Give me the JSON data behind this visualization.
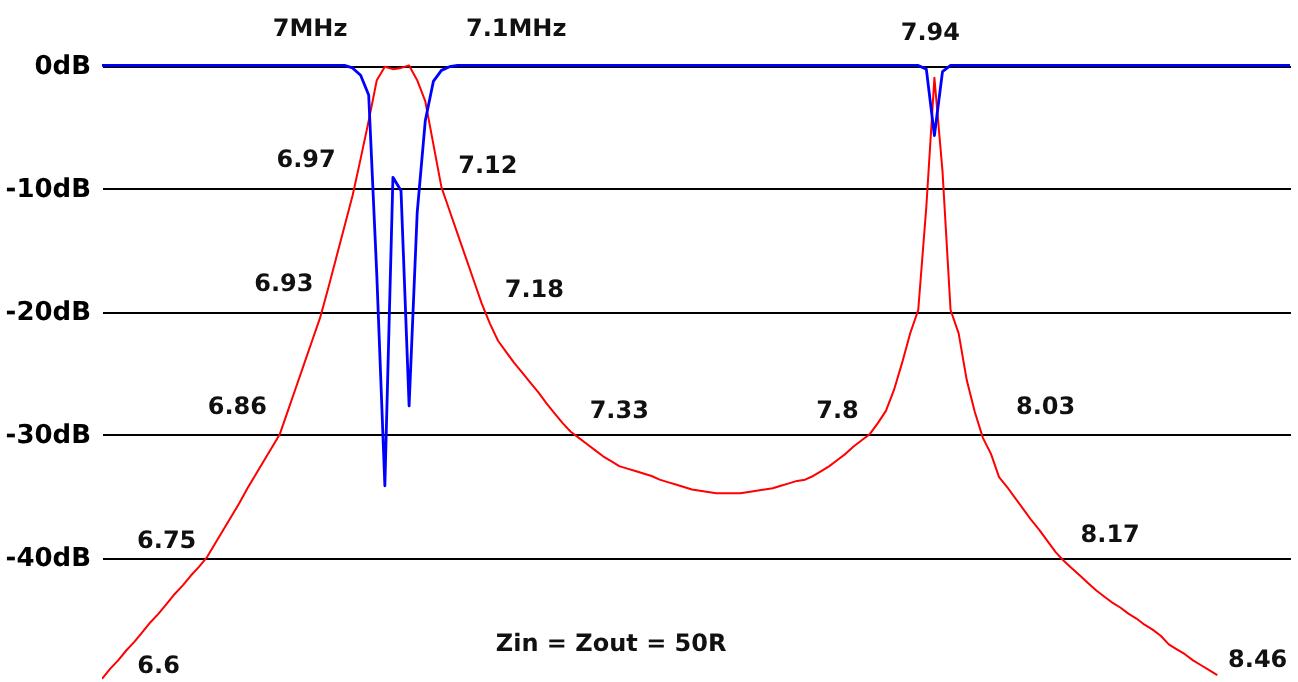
{
  "chart_data": {
    "type": "line",
    "categories": [
      null,
      null,
      null,
      null,
      null,
      null,
      null,
      null,
      null,
      null,
      null,
      null,
      null,
      null,
      null,
      null,
      null,
      null,
      null,
      null,
      null,
      null,
      null,
      null,
      null,
      null,
      null,
      null,
      null,
      null,
      null,
      null,
      null,
      null,
      null,
      null,
      null,
      null,
      null,
      null,
      null,
      null,
      null,
      null,
      null,
      null,
      null,
      null,
      null,
      null,
      null,
      null,
      null,
      null,
      null,
      null,
      null,
      null,
      null,
      null,
      null,
      null,
      null,
      null,
      null,
      null,
      null,
      null,
      null,
      null,
      null,
      null,
      null,
      null,
      null,
      null,
      null,
      null,
      null,
      null,
      null,
      null,
      null,
      null,
      null,
      null,
      null,
      null,
      null,
      null,
      null,
      null,
      null,
      null,
      null,
      null,
      null,
      null,
      null,
      null,
      null,
      null,
      null,
      null,
      null,
      null,
      null,
      null,
      null,
      null,
      null,
      null,
      null,
      null,
      null,
      null,
      null,
      null,
      null,
      null,
      null,
      null,
      null,
      null,
      null,
      null,
      null,
      null,
      null,
      null,
      null,
      null,
      null,
      null,
      null,
      null,
      null,
      null,
      null,
      null,
      null,
      null,
      null,
      null,
      null,
      null,
      null,
      null
    ],
    "series": [
      {
        "color": "#ff0000",
        "values": [
          -49.9,
          -49.1,
          -48.4,
          -47.6,
          -46.9,
          -46.1,
          -45.3,
          -44.6,
          -43.8,
          -43.0,
          -42.3,
          -41.5,
          -40.8,
          -40.0,
          -38.9,
          -37.8,
          -36.7,
          -35.6,
          -34.4,
          -33.3,
          -32.2,
          -31.1,
          -30.0,
          -28.1,
          -26.2,
          -24.3,
          -22.4,
          -20.5,
          -18.1,
          -15.6,
          -13.1,
          -10.6,
          -7.6,
          -4.5,
          -1.2,
          -0.1,
          -0.3,
          -0.2,
          0,
          -1.2,
          -2.9,
          -6.4,
          -9.9,
          -11.8,
          -13.7,
          -15.6,
          -17.5,
          -19.4,
          -21.0,
          -22.4,
          -23.3,
          -24.2,
          -25.0,
          -25.8,
          -26.6,
          -27.5,
          -28.3,
          -29.1,
          -29.8,
          -30.3,
          -30.8,
          -31.3,
          -31.8,
          -32.2,
          -32.6,
          -32.8,
          -33.0,
          -33.2,
          -33.4,
          -33.7,
          -33.9,
          -34.1,
          -34.3,
          -34.5,
          -34.6,
          -34.7,
          -34.8,
          -34.8,
          -34.8,
          -34.8,
          -34.7,
          -34.6,
          -34.5,
          -34.4,
          -34.2,
          -34.0,
          -33.8,
          -33.7,
          -33.4,
          -33.0,
          -32.6,
          -32.1,
          -31.6,
          -31.0,
          -30.5,
          -30.0,
          -29.1,
          -28.1,
          -26.4,
          -24.2,
          -21.8,
          -19.9,
          -11.5,
          -1.0,
          -8.6,
          -19.9,
          -21.8,
          -25.6,
          -28.2,
          -30.3,
          -31.6,
          -33.5,
          -34.3,
          -35.2,
          -36.1,
          -37.0,
          -37.8,
          -38.7,
          -39.6,
          -40.3,
          -40.9,
          -41.5,
          -42.1,
          -42.7,
          -43.2,
          -43.7,
          -44.1,
          -44.6,
          -45.0,
          -45.5,
          -45.9,
          -46.4,
          -47.1,
          -47.5,
          -47.9,
          -48.4,
          -48.8,
          -49.2,
          -49.6,
          null,
          null,
          null,
          null,
          null,
          null,
          null,
          null,
          null
        ]
      },
      {
        "color": "#0000ff",
        "values": [
          0,
          0,
          0,
          0,
          0,
          0,
          0,
          0,
          0,
          0,
          0,
          0,
          0,
          0,
          0,
          0,
          0,
          0,
          0,
          0,
          0,
          0,
          0,
          0,
          0,
          0,
          0,
          0,
          0,
          0,
          0,
          -0.2,
          -0.8,
          -2.4,
          -17.0,
          -34.2,
          -9.1,
          -10.2,
          -27.7,
          -12.0,
          -4.5,
          -1.3,
          -0.4,
          -0.1,
          0,
          0,
          0,
          0,
          0,
          0,
          0,
          0,
          0,
          0,
          0,
          0,
          0,
          0,
          0,
          0,
          0,
          0,
          0,
          0,
          0,
          0,
          0,
          0,
          0,
          0,
          0,
          0,
          0,
          0,
          0,
          0,
          0,
          0,
          0,
          0,
          0,
          0,
          0,
          0,
          0,
          0,
          0,
          0,
          0,
          0,
          0,
          0,
          0,
          0,
          0,
          0,
          0,
          0,
          0,
          0,
          0,
          0,
          -0.3,
          -5.7,
          -0.5,
          0,
          0,
          0,
          0,
          0,
          0,
          0,
          0,
          0,
          0,
          0,
          0,
          0,
          0,
          0,
          0,
          0,
          0,
          0,
          0,
          0,
          0,
          0,
          0,
          0,
          0,
          0,
          0,
          0,
          0,
          0,
          0,
          0,
          0,
          0,
          0,
          0,
          0,
          0,
          0,
          0,
          0,
          0
        ]
      }
    ],
    "ylim": [
      -50,
      5
    ],
    "yticks": [
      {
        "value": 0,
        "label": "0dB"
      },
      {
        "value": -10,
        "label": "-10dB"
      },
      {
        "value": -20,
        "label": "-20dB"
      },
      {
        "value": -30,
        "label": "-30dB"
      },
      {
        "value": -40,
        "label": "-40dB"
      }
    ],
    "grid": "y",
    "tick_labels": "y",
    "annotations": [
      "6.6",
      "6.75",
      "6.86",
      "6.93",
      "6.97",
      "7MHz",
      "7.1MHz",
      "7.12",
      "7.18",
      "7.33",
      "7.8",
      "7.94",
      "8.03",
      "8.17",
      "8.46",
      "Zin = Zout = 50R"
    ]
  }
}
